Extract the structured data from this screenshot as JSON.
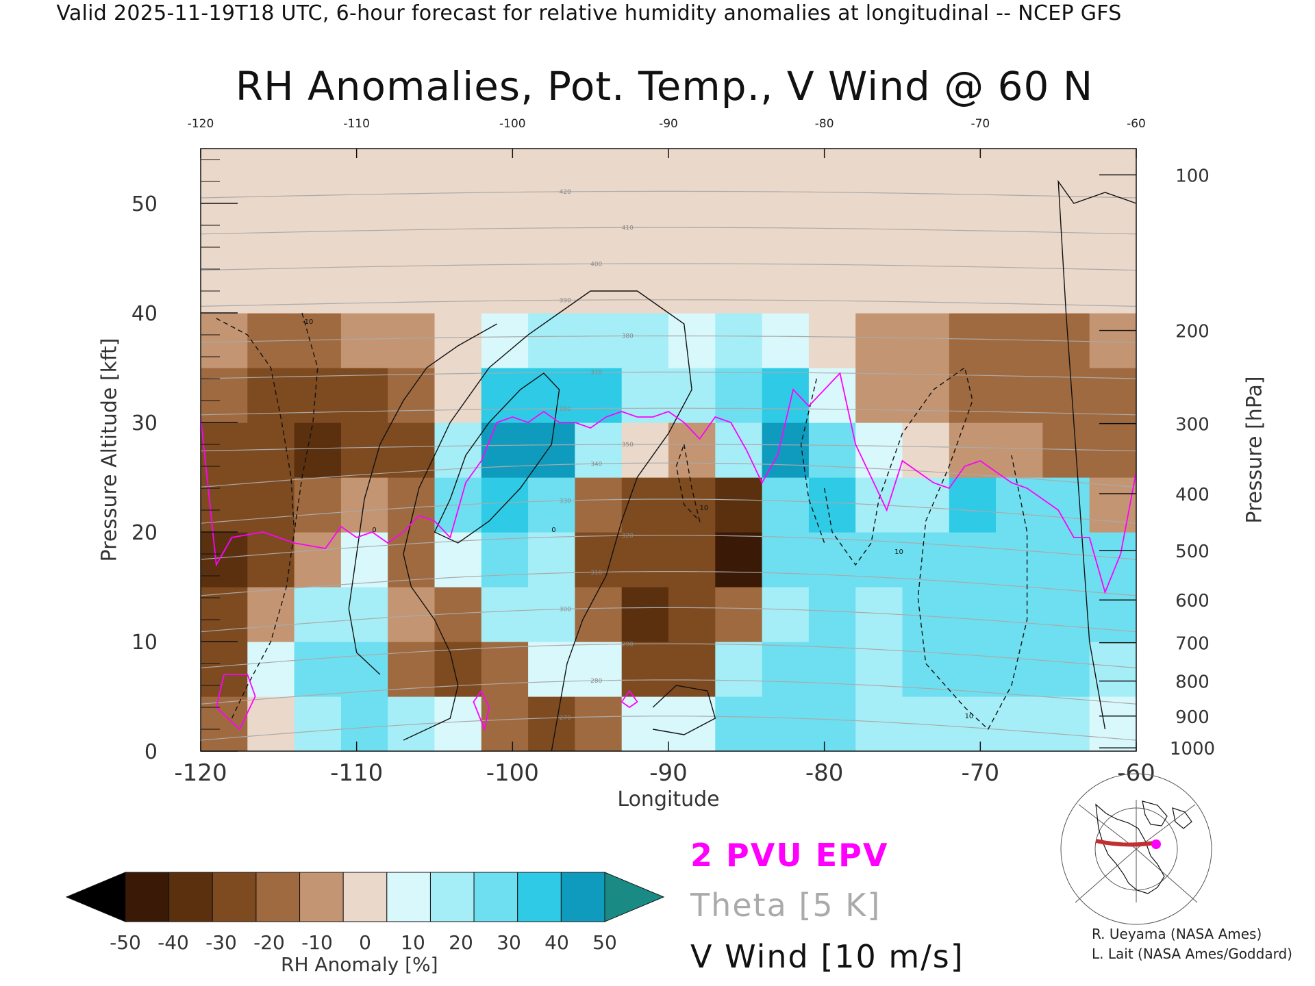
{
  "header": {
    "valid_line": "Valid 2025-11-19T18 UTC, 6-hour forecast for relative humidity anomalies at longitudinal -- NCEP GFS"
  },
  "chart_data": {
    "type": "heatmap",
    "title": "RH Anomalies, Pot. Temp., V Wind @ 60 N",
    "xlabel": "Longitude",
    "ylabel": "Pressure Altitude [kft]",
    "ylabel_right": "Pressure [hPa]",
    "xlim": [
      -120,
      -60
    ],
    "ylim": [
      0,
      55
    ],
    "x_ticks": [
      "-120",
      "-110",
      "-100",
      "-90",
      "-80",
      "-70",
      "-60"
    ],
    "x_tick_values": [
      -120,
      -110,
      -100,
      -90,
      -80,
      -70,
      -60
    ],
    "y_ticks": [
      "0",
      "10",
      "20",
      "30",
      "40",
      "50"
    ],
    "y_tick_values": [
      0,
      10,
      20,
      30,
      40,
      50
    ],
    "pressure_ticks": [
      {
        "label": "100",
        "kft": 52.6
      },
      {
        "label": "200",
        "kft": 38.4
      },
      {
        "label": "300",
        "kft": 29.9
      },
      {
        "label": "400",
        "kft": 23.5
      },
      {
        "label": "500",
        "kft": 18.3
      },
      {
        "label": "600",
        "kft": 13.8
      },
      {
        "label": "700",
        "kft": 9.9
      },
      {
        "label": "800",
        "kft": 6.4
      },
      {
        "label": "900",
        "kft": 3.2
      },
      {
        "label": "1000",
        "kft": 0.3
      }
    ],
    "field_name": "RH Anomaly [%]",
    "colorbar": {
      "label": "RH Anomaly [%]",
      "ticks": [
        "-50",
        "-40",
        "-30",
        "-20",
        "-10",
        "0",
        "10",
        "20",
        "30",
        "40",
        "50"
      ],
      "colors": [
        "#3a1a06",
        "#5a300f",
        "#7e4a20",
        "#a06a40",
        "#c39572",
        "#ead8ca",
        "#d8f8fc",
        "#a6eef7",
        "#6edff0",
        "#2fcbe6",
        "#0f9bbe"
      ],
      "under_color": "#000000",
      "over_color": "#1a8a84"
    },
    "cell_width_deg": 3,
    "cell_height_kft": 5,
    "rh_anomaly_grid": {
      "x_centers": [
        -118.5,
        -115.5,
        -112.5,
        -109.5,
        -106.5,
        -103.5,
        -100.5,
        -97.5,
        -94.5,
        -91.5,
        -88.5,
        -85.5,
        -82.5,
        -79.5,
        -76.5,
        -73.5,
        -70.5,
        -67.5,
        -64.5,
        -61.5
      ],
      "y_centers": [
        2.5,
        7.5,
        12.5,
        17.5,
        22.5,
        27.5,
        32.5,
        37.5,
        42.5,
        47.5,
        52.5
      ],
      "values": [
        [
          -20,
          -5,
          15,
          25,
          20,
          5,
          -25,
          -35,
          -20,
          10,
          10,
          25,
          25,
          25,
          15,
          20,
          20,
          20,
          20,
          10
        ],
        [
          -30,
          10,
          30,
          25,
          -20,
          -35,
          -25,
          5,
          10,
          -30,
          -30,
          15,
          25,
          30,
          20,
          25,
          25,
          25,
          25,
          20
        ],
        [
          -30,
          -15,
          20,
          15,
          -10,
          -25,
          15,
          20,
          -25,
          -40,
          -35,
          -20,
          20,
          25,
          15,
          25,
          25,
          25,
          25,
          25
        ],
        [
          -45,
          -35,
          -10,
          10,
          -25,
          5,
          25,
          20,
          -30,
          -35,
          -30,
          -50,
          25,
          30,
          25,
          25,
          30,
          30,
          30,
          25
        ],
        [
          -35,
          -35,
          -25,
          -15,
          -25,
          30,
          35,
          30,
          -25,
          -35,
          -30,
          -45,
          30,
          35,
          15,
          20,
          35,
          30,
          25,
          -10
        ],
        [
          -30,
          -35,
          -40,
          -35,
          -30,
          20,
          45,
          45,
          15,
          -5,
          -10,
          15,
          45,
          25,
          5,
          -5,
          -15,
          -15,
          -20,
          -25
        ],
        [
          -25,
          -30,
          -30,
          -30,
          -20,
          -5,
          35,
          40,
          35,
          20,
          15,
          30,
          40,
          10,
          -15,
          -15,
          -20,
          -20,
          -20,
          -25
        ],
        [
          -15,
          -20,
          -20,
          -15,
          -10,
          0,
          10,
          20,
          20,
          15,
          10,
          15,
          10,
          0,
          -10,
          -15,
          -20,
          -20,
          -20,
          -15
        ],
        [
          -5,
          -5,
          -5,
          -5,
          -5,
          -5,
          0,
          0,
          0,
          0,
          0,
          0,
          0,
          0,
          -5,
          -5,
          -5,
          -5,
          -5,
          -5
        ],
        [
          0,
          0,
          0,
          0,
          0,
          0,
          0,
          0,
          0,
          0,
          0,
          0,
          0,
          0,
          0,
          0,
          0,
          0,
          0,
          0
        ],
        [
          0,
          0,
          0,
          0,
          0,
          0,
          0,
          0,
          0,
          0,
          0,
          0,
          0,
          0,
          0,
          0,
          0,
          0,
          0,
          0
        ]
      ]
    },
    "epv_2pvu_line": {
      "name": "2 PVU EPV",
      "color": "#ff00ff",
      "x": [
        -120,
        -119,
        -118,
        -116,
        -114,
        -112,
        -111,
        -110,
        -109,
        -108,
        -107,
        -106,
        -105,
        -104,
        -103,
        -102,
        -101,
        -100,
        -99,
        -98,
        -97,
        -96,
        -95,
        -94,
        -93,
        -92,
        -91,
        -90,
        -89,
        -88,
        -87,
        -86,
        -85,
        -84,
        -83,
        -82,
        -81,
        -80,
        -79,
        -78,
        -77,
        -76,
        -75,
        -74,
        -73,
        -72,
        -71,
        -70,
        -69,
        -68,
        -67,
        -66,
        -65,
        -64,
        -63,
        -62,
        -61,
        -60
      ],
      "y": [
        30.5,
        17,
        19.5,
        20,
        19,
        18.5,
        20.5,
        19.5,
        20,
        19,
        20,
        21.5,
        21,
        19.5,
        24.5,
        26.5,
        30,
        30.5,
        30,
        31,
        30,
        30,
        29.5,
        30.5,
        31,
        30.5,
        30.5,
        31,
        30,
        28.5,
        30.5,
        30,
        27.5,
        24.5,
        27,
        33,
        31.5,
        33,
        34.5,
        28,
        25,
        22,
        26.5,
        25.5,
        24.5,
        24,
        26,
        26.5,
        25.5,
        24.5,
        24,
        23,
        22,
        19.5,
        19.5,
        14.5,
        18,
        25.5
      ]
    },
    "theta_contours": {
      "name": "Theta [5 K]",
      "color": "#aaaaaa",
      "interval_K": 5,
      "labels": [
        "270",
        "280",
        "290",
        "300",
        "310",
        "320",
        "330",
        "340",
        "350",
        "360",
        "370",
        "380",
        "390",
        "400",
        "410",
        "420"
      ]
    },
    "v_wind_contours": {
      "name": "V Wind [10 m/s]",
      "color": "#111111",
      "interval_ms": 10,
      "labels": [
        "10",
        "0",
        "-10"
      ]
    },
    "legend": [
      {
        "label": "2 PVU EPV",
        "color": "#ff00ff"
      },
      {
        "label": "Theta [5 K]",
        "color": "#aaaaaa"
      },
      {
        "label": "V Wind [10 m/s]",
        "color": "#111111"
      }
    ]
  },
  "credits": {
    "line1": "R. Ueyama (NASA Ames)",
    "line2": "L. Lait (NASA Ames/Goddard)"
  }
}
